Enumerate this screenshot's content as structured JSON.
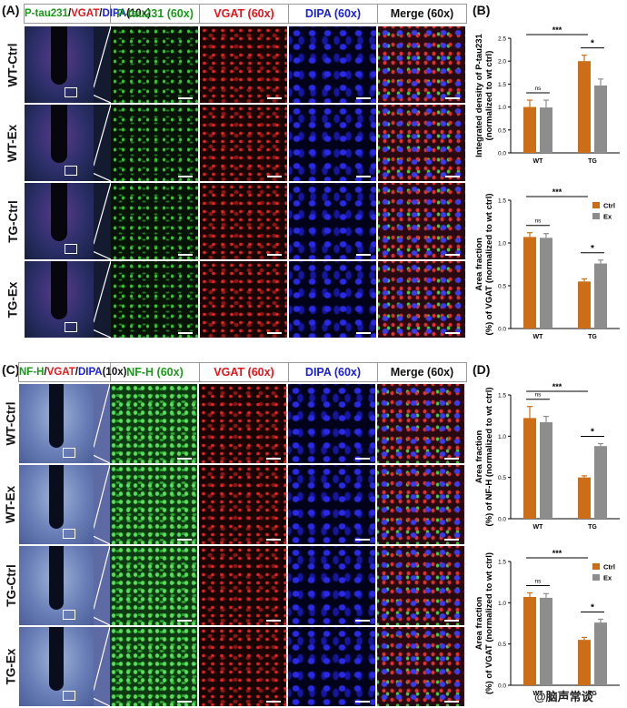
{
  "figure": {
    "panel_A": {
      "label": "(A)",
      "overview_header": [
        {
          "text": "P-tau231",
          "color": "#1a9a1a"
        },
        {
          "text": "/",
          "color": "#111111"
        },
        {
          "text": "VGAT",
          "color": "#e0161b"
        },
        {
          "text": "/",
          "color": "#111111"
        },
        {
          "text": "DIPA",
          "color": "#1a22d8"
        },
        {
          "text": "(10x)",
          "color": "#111111"
        }
      ],
      "columns": [
        {
          "text": "P-tau231 (60x)",
          "color": "#1a9a1a"
        },
        {
          "text": "VGAT (60x)",
          "color": "#e0161b"
        },
        {
          "text": "DIPA (60x)",
          "color": "#1a22d8"
        },
        {
          "text": "Merge (60x)",
          "color": "#111111"
        }
      ],
      "rows": [
        "WT-Ctrl",
        "WT-Ex",
        "TG-Ctrl",
        "TG-Ex"
      ]
    },
    "panel_C": {
      "label": "(C)",
      "overview_header": [
        {
          "text": "NF-H",
          "color": "#1a9a1a"
        },
        {
          "text": "/",
          "color": "#111111"
        },
        {
          "text": "VGAT",
          "color": "#e0161b"
        },
        {
          "text": "/",
          "color": "#111111"
        },
        {
          "text": "DIPA",
          "color": "#1a22d8"
        },
        {
          "text": "(10x)",
          "color": "#111111"
        }
      ],
      "columns": [
        {
          "text": "NF-H (60x)",
          "color": "#1a9a1a"
        },
        {
          "text": "VGAT (60x)",
          "color": "#e0161b"
        },
        {
          "text": "DIPA (60x)",
          "color": "#1a22d8"
        },
        {
          "text": "Merge (60x)",
          "color": "#111111"
        }
      ],
      "rows": [
        "WT-Ctrl",
        "WT-Ex",
        "TG-Ctrl",
        "TG-Ex"
      ]
    },
    "panel_B": {
      "label": "(B)"
    },
    "panel_D": {
      "label": "(D)"
    },
    "watermark": "@脑声常谈"
  },
  "colors": {
    "ctrl": "#cc6e17",
    "ex": "#8d8d8d"
  },
  "chart_data": [
    {
      "type": "bar",
      "categories": [
        "WT",
        "TG"
      ],
      "series": [
        {
          "name": "Ctrl",
          "values": [
            1.0,
            2.0
          ],
          "errors": [
            0.15,
            0.13
          ]
        },
        {
          "name": "Ex",
          "values": [
            0.99,
            1.47
          ],
          "errors": [
            0.16,
            0.14
          ]
        }
      ],
      "ylabel": "Integrated density of P-tau231 (normalized to wt ctrl)",
      "ylim": [
        0,
        2.5
      ],
      "yticks": [
        "0.0",
        "0.5",
        "1.0",
        "1.5",
        "2.0",
        "2.5"
      ],
      "legend": false,
      "significance": [
        {
          "label": "ns",
          "between": "WT Ctrl vs WT Ex"
        },
        {
          "label": "*",
          "between": "TG Ctrl vs TG Ex"
        },
        {
          "label": "***",
          "between": "WT Ctrl vs TG Ctrl"
        }
      ]
    },
    {
      "type": "bar",
      "categories": [
        "WT",
        "TG"
      ],
      "series": [
        {
          "name": "Ctrl",
          "values": [
            1.07,
            0.55
          ],
          "errors": [
            0.05,
            0.03
          ]
        },
        {
          "name": "Ex",
          "values": [
            1.06,
            0.76
          ],
          "errors": [
            0.05,
            0.04
          ]
        }
      ],
      "ylabel": "Area fraction (%) of VGAT (normalized to wt ctrl)",
      "ylim": [
        0,
        1.5
      ],
      "yticks": [
        "0.0",
        "0.5",
        "1.0",
        "1.5"
      ],
      "legend": true,
      "legend_position": "top-right",
      "significance": [
        {
          "label": "ns",
          "between": "WT Ctrl vs WT Ex"
        },
        {
          "label": "*",
          "between": "TG Ctrl vs TG Ex"
        },
        {
          "label": "***",
          "between": "WT Ctrl vs TG Ctrl"
        }
      ]
    },
    {
      "type": "bar",
      "categories": [
        "WT",
        "TG"
      ],
      "series": [
        {
          "name": "Ctrl",
          "values": [
            1.22,
            0.5
          ],
          "errors": [
            0.14,
            0.02
          ]
        },
        {
          "name": "Ex",
          "values": [
            1.17,
            0.88
          ],
          "errors": [
            0.07,
            0.03
          ]
        }
      ],
      "ylabel": "Area fraction (%) of NF-H (normalized to wt ctrl)",
      "ylim": [
        0,
        1.5
      ],
      "yticks": [
        "0.0",
        "0.5",
        "1.0",
        "1.5"
      ],
      "legend": false,
      "significance": [
        {
          "label": "ns",
          "between": "WT Ctrl vs WT Ex"
        },
        {
          "label": "*",
          "between": "TG Ctrl vs TG Ex"
        },
        {
          "label": "***",
          "between": "WT Ctrl vs TG Ctrl"
        }
      ]
    },
    {
      "type": "bar",
      "categories": [
        "WT",
        "TG"
      ],
      "series": [
        {
          "name": "Ctrl",
          "values": [
            1.07,
            0.55
          ],
          "errors": [
            0.05,
            0.03
          ]
        },
        {
          "name": "Ex",
          "values": [
            1.06,
            0.76
          ],
          "errors": [
            0.05,
            0.04
          ]
        }
      ],
      "ylabel": "Area fraction (%) of VGAT (normalized to wt ctrl)",
      "ylim": [
        0,
        1.5
      ],
      "yticks": [
        "0.0",
        "0.5",
        "1.0",
        "1.5"
      ],
      "legend": true,
      "legend_position": "top-right",
      "significance": [
        {
          "label": "ns",
          "between": "WT Ctrl vs WT Ex"
        },
        {
          "label": "*",
          "between": "TG Ctrl vs TG Ex"
        },
        {
          "label": "***",
          "between": "WT Ctrl vs TG Ctrl"
        }
      ]
    }
  ]
}
